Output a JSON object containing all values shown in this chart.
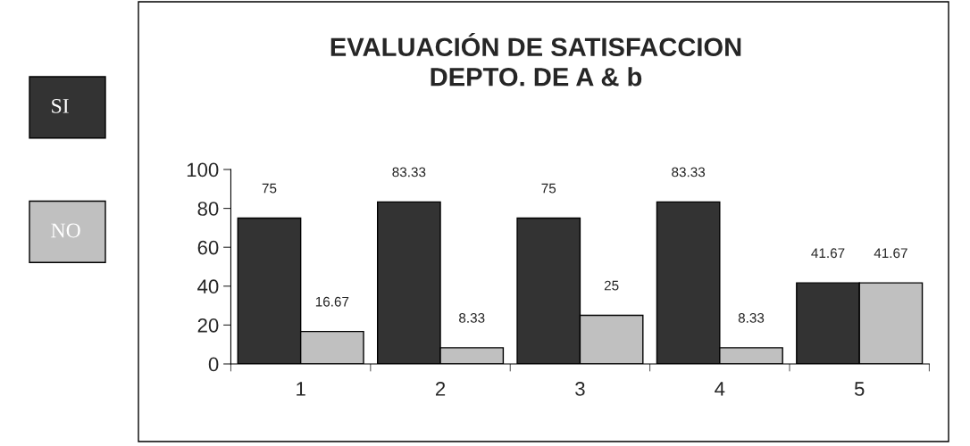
{
  "chart_data": {
    "type": "bar",
    "title": "EVALUACIÓN DE SATISFACCION\nDEPTO. DE A & b",
    "categories": [
      "1",
      "2",
      "3",
      "4",
      "5"
    ],
    "series": [
      {
        "name": "SI",
        "color": "#333333",
        "values": [
          75,
          83.33,
          75,
          83.33,
          41.67
        ]
      },
      {
        "name": "NO",
        "color": "#c0c0c0",
        "values": [
          16.67,
          8.33,
          25,
          8.33,
          41.67
        ]
      }
    ],
    "ylim": [
      0,
      100
    ],
    "yticks": [
      0,
      20,
      40,
      60,
      80,
      100
    ],
    "grid": false,
    "legend": "left",
    "data_labels": true
  }
}
